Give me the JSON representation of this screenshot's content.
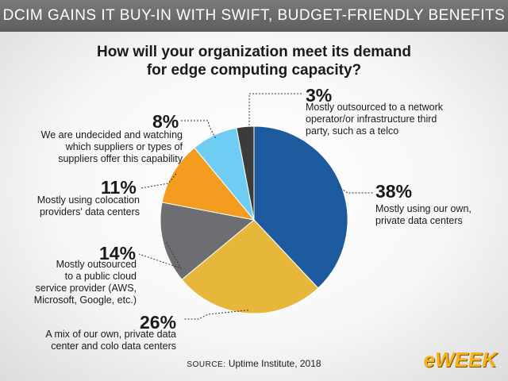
{
  "header": {
    "title": "DCIM GAINS IT BUY-IN WITH SWIFT, BUDGET-FRIENDLY BENEFITS"
  },
  "colors": {
    "series": [
      "#1e5a9e",
      "#e7b73c",
      "#6d6e71",
      "#f39c1f",
      "#6fcdf3",
      "#3b3b3c"
    ],
    "header_bar": "#6b6b6b",
    "logo": "#f5b41f"
  },
  "chart_data": {
    "type": "pie",
    "title_lines": [
      "How will your organization meet its demand",
      "for edge computing capacity?"
    ],
    "slices": [
      {
        "value": 38,
        "label": "38%",
        "desc_lines": [
          "Mostly using our own,",
          "private data centers"
        ]
      },
      {
        "value": 26,
        "label": "26%",
        "desc_lines": [
          "A mix of our own, private data",
          "center and colo data centers"
        ]
      },
      {
        "value": 14,
        "label": "14%",
        "desc_lines": [
          "Mostly outsourced",
          "to a public cloud",
          "service provider (AWS,",
          "Microsoft, Google, etc.)"
        ]
      },
      {
        "value": 11,
        "label": "11%",
        "desc_lines": [
          "Mostly using colocation",
          "providers' data centers"
        ]
      },
      {
        "value": 8,
        "label": "8%",
        "desc_lines": [
          "We are undecided and watching",
          "which suppliers or types of",
          "suppliers offer this capability"
        ]
      },
      {
        "value": 3,
        "label": "3%",
        "desc_lines": [
          "Mostly outsourced to a network",
          "operator/or infrastructure third",
          "party, such as a telco"
        ]
      }
    ]
  },
  "source": {
    "label": "SOURCE:",
    "text": "Uptime Institute, 2018"
  },
  "logo": {
    "text": "eWEEK"
  }
}
